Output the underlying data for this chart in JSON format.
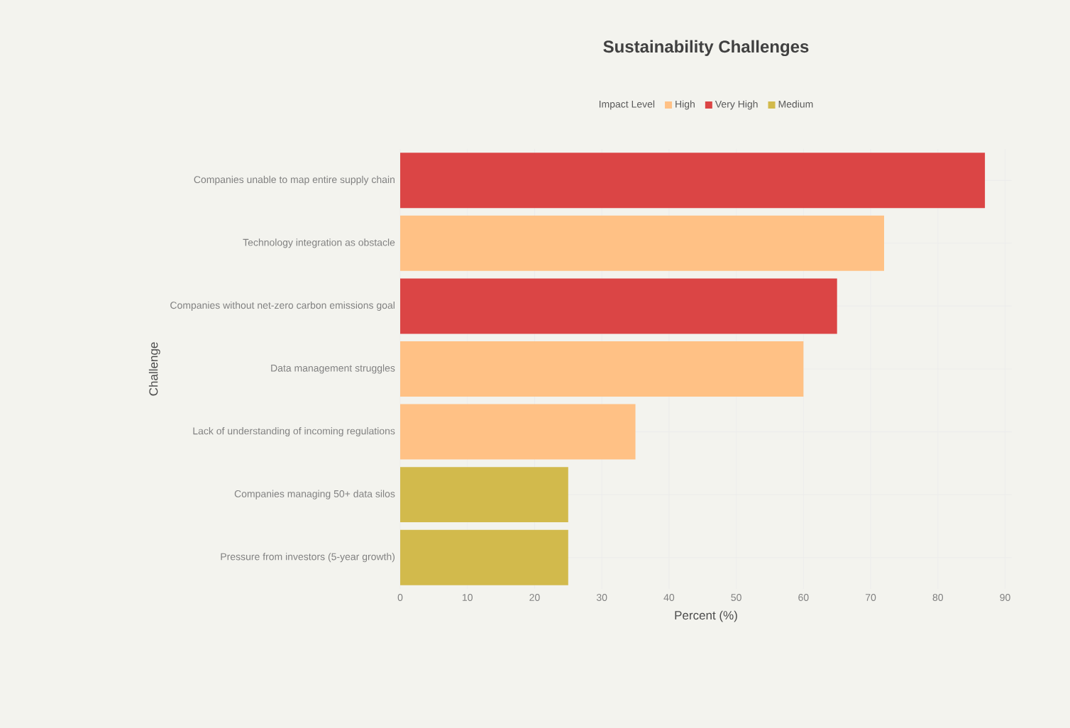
{
  "chart_data": {
    "type": "bar",
    "orientation": "horizontal",
    "title": "Sustainability Challenges",
    "xlabel": "Percent (%)",
    "ylabel": "Challenge",
    "legend_title": "Impact Level",
    "categories": [
      "Companies unable to map entire supply chain",
      "Technology integration as obstacle",
      "Companies without net-zero carbon emissions goal",
      "Data management struggles",
      "Lack of understanding of incoming regulations",
      "Companies managing 50+ data silos",
      "Pressure from investors (5-year growth)"
    ],
    "series": [
      {
        "name": "High",
        "color": "#ffc185",
        "values": [
          null,
          72,
          null,
          60,
          35,
          null,
          null
        ]
      },
      {
        "name": "Very High",
        "color": "#db4545",
        "values": [
          87,
          null,
          65,
          null,
          null,
          null,
          null
        ]
      },
      {
        "name": "Medium",
        "color": "#d2ba4c",
        "values": [
          null,
          null,
          null,
          null,
          null,
          25,
          25
        ]
      }
    ],
    "xlim": [
      0,
      91
    ],
    "xticks": [
      0,
      10,
      20,
      30,
      40,
      50,
      60,
      70,
      80,
      90
    ],
    "grid": true,
    "legend": "top"
  }
}
